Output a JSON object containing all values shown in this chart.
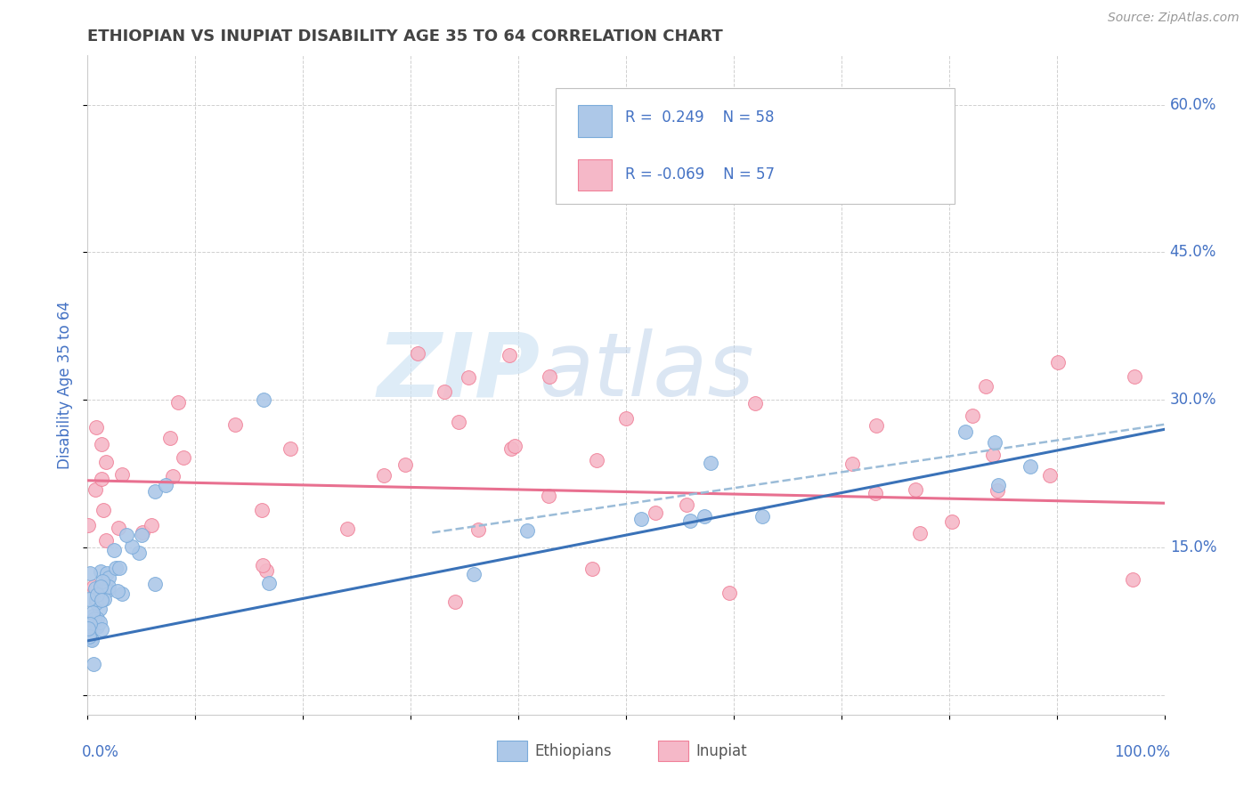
{
  "title": "ETHIOPIAN VS INUPIAT DISABILITY AGE 35 TO 64 CORRELATION CHART",
  "source": "Source: ZipAtlas.com",
  "ylabel": "Disability Age 35 to 64",
  "x_range": [
    0.0,
    1.0
  ],
  "y_range": [
    -0.02,
    0.65
  ],
  "y_ticks": [
    0.0,
    0.15,
    0.3,
    0.45,
    0.6
  ],
  "y_tick_labels": [
    "",
    "15.0%",
    "30.0%",
    "45.0%",
    "60.0%"
  ],
  "color_blue": "#adc8e8",
  "color_pink": "#f5b8c8",
  "edge_blue": "#7aabda",
  "edge_pink": "#f08098",
  "trend_blue": "#3a72b8",
  "trend_pink": "#e87090",
  "trend_blue_dashed": "#9bbcd8",
  "grid_color": "#d0d0d0",
  "background_color": "#ffffff",
  "title_color": "#444444",
  "axis_label_color": "#4472c4",
  "watermark_color": "#d0e4f4",
  "eth_trend_x0": 0.0,
  "eth_trend_y0": 0.055,
  "eth_trend_x1": 1.0,
  "eth_trend_y1": 0.27,
  "inp_trend_x0": 0.0,
  "inp_trend_y0": 0.218,
  "inp_trend_x1": 1.0,
  "inp_trend_y1": 0.195,
  "dashed_trend_x0": 0.32,
  "dashed_trend_y0": 0.165,
  "dashed_trend_x1": 1.0,
  "dashed_trend_y1": 0.275
}
